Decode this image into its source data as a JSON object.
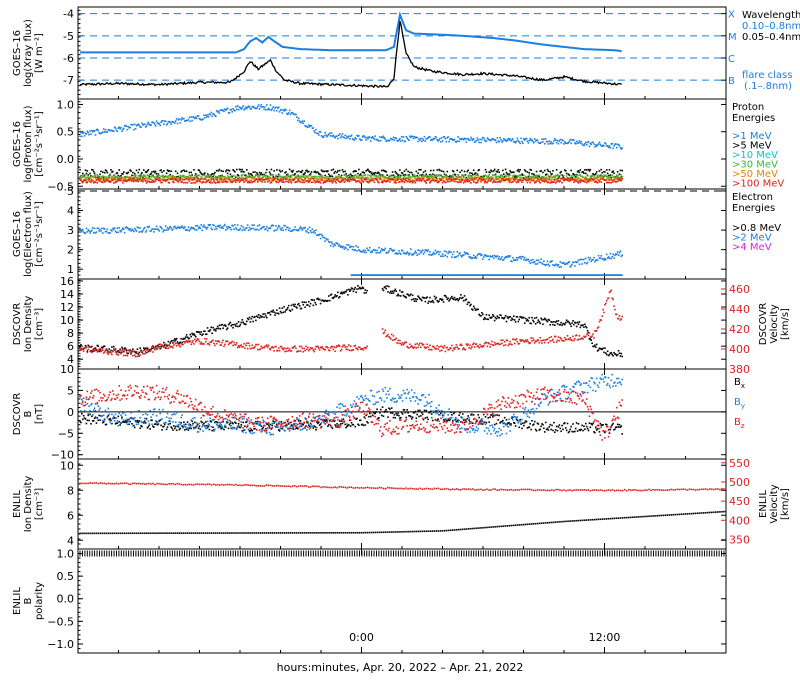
{
  "figure": {
    "xlabel": "hours:minutes, Apr. 20, 2022 – Apr. 21, 2022",
    "x_range_hours": [
      -14.0,
      18.0
    ],
    "x_ticks": [
      {
        "label": "0:00",
        "hour": 0
      },
      {
        "label": "12:00",
        "hour": 12
      }
    ]
  },
  "chart_data": [
    {
      "type": "line",
      "id": "xray",
      "ylabel": [
        "GOES–16",
        "log(Xray flux)",
        "[W m⁻²]"
      ],
      "ylim": [
        -7.85,
        -3.7
      ],
      "yticks": [
        -7,
        -6,
        -5,
        -4
      ],
      "ref_lines": [
        -4,
        -5,
        -6,
        -7
      ],
      "ref_labels": [
        "X",
        "M",
        "C",
        "B"
      ],
      "legend": {
        "title": "Wavelength",
        "entries": [
          {
            "label": "0.10–0.8nm",
            "color": "#1a7fe0"
          },
          {
            "label": "0.05–0.4nm",
            "color": "#000000"
          }
        ]
      },
      "note": [
        "flare class",
        "(.1–.8nm)"
      ],
      "series": [
        {
          "name": "0.10–0.8nm",
          "color": "#1a7fe0",
          "style": "step",
          "points": [
            [
              -13.9,
              -5.75
            ],
            [
              -6.2,
              -5.75
            ],
            [
              -5.8,
              -5.6
            ],
            [
              -5.5,
              -5.25
            ],
            [
              -5.2,
              -5.1
            ],
            [
              -4.9,
              -5.3
            ],
            [
              -4.6,
              -5.05
            ],
            [
              -4.3,
              -5.25
            ],
            [
              -3.9,
              -5.5
            ],
            [
              -3.0,
              -5.6
            ],
            [
              -1.5,
              -5.65
            ],
            [
              1.2,
              -5.65
            ],
            [
              1.6,
              -5.5
            ],
            [
              1.9,
              -4.05
            ],
            [
              2.2,
              -4.75
            ],
            [
              2.6,
              -4.9
            ],
            [
              4.0,
              -4.95
            ],
            [
              5.0,
              -5.0
            ],
            [
              6.5,
              -5.1
            ],
            [
              7.5,
              -5.2
            ],
            [
              9.0,
              -5.4
            ],
            [
              10.0,
              -5.5
            ],
            [
              11.0,
              -5.6
            ],
            [
              12.5,
              -5.65
            ],
            [
              12.9,
              -5.7
            ]
          ]
        },
        {
          "name": "0.05–0.4nm",
          "color": "#000000",
          "style": "line",
          "points": [
            [
              -13.9,
              -7.2
            ],
            [
              -12.0,
              -7.15
            ],
            [
              -10.0,
              -7.2
            ],
            [
              -8.0,
              -7.1
            ],
            [
              -6.5,
              -7.1
            ],
            [
              -6.2,
              -6.9
            ],
            [
              -5.8,
              -6.6
            ],
            [
              -5.5,
              -6.15
            ],
            [
              -5.1,
              -6.5
            ],
            [
              -4.8,
              -6.3
            ],
            [
              -4.5,
              -6.1
            ],
            [
              -4.2,
              -6.6
            ],
            [
              -3.8,
              -7.0
            ],
            [
              -3.0,
              -7.15
            ],
            [
              -1.5,
              -7.2
            ],
            [
              0.0,
              -7.25
            ],
            [
              1.3,
              -7.3
            ],
            [
              1.6,
              -6.9
            ],
            [
              1.9,
              -4.3
            ],
            [
              2.2,
              -5.8
            ],
            [
              2.6,
              -6.4
            ],
            [
              3.5,
              -6.6
            ],
            [
              5.0,
              -6.75
            ],
            [
              6.0,
              -6.7
            ],
            [
              7.5,
              -6.8
            ],
            [
              9.0,
              -7.0
            ],
            [
              10.0,
              -6.85
            ],
            [
              11.0,
              -7.05
            ],
            [
              12.9,
              -7.2
            ]
          ]
        }
      ]
    },
    {
      "type": "scatter",
      "id": "protons",
      "ylabel": [
        "GOES–16",
        "log(Proton flux)",
        "[cm⁻²s⁻¹sr⁻¹]"
      ],
      "ylim": [
        -0.55,
        1.1
      ],
      "yticks": [
        -0.5,
        0.0,
        0.5,
        1.0
      ],
      "ytick_labels": [
        "−0.5",
        "0.0",
        "0.5",
        "1.0"
      ],
      "legend": {
        "title": [
          "Proton",
          "Energies"
        ],
        "entries": [
          {
            "label": ">1 MeV",
            "color": "#1a7fe0"
          },
          {
            "label": ">5 MeV",
            "color": "#000000"
          },
          {
            "label": ">10 MeV",
            "color": "#00c8d8"
          },
          {
            "label": ">30 MeV",
            "color": "#33bb33"
          },
          {
            "label": ">50 MeV",
            "color": "#dd8800"
          },
          {
            "label": ">100 MeV",
            "color": "#dd2222"
          }
        ]
      },
      "series": [
        {
          "name": ">1 MeV",
          "color": "#1a7fe0",
          "points": [
            [
              -13.9,
              0.45
            ],
            [
              -11.0,
              0.6
            ],
            [
              -8.0,
              0.75
            ],
            [
              -6.0,
              0.95
            ],
            [
              -4.5,
              0.95
            ],
            [
              -3.5,
              0.85
            ],
            [
              -2.0,
              0.45
            ],
            [
              0.0,
              0.38
            ],
            [
              6.0,
              0.35
            ],
            [
              10.0,
              0.32
            ],
            [
              12.9,
              0.22
            ]
          ],
          "jitter": 0.05
        },
        {
          "name": ">5 MeV",
          "color": "#000000",
          "points": [
            [
              -13.9,
              -0.27
            ],
            [
              12.9,
              -0.27
            ]
          ],
          "jitter": 0.08
        },
        {
          "name": ">30 MeV",
          "color": "#33bb33",
          "points": [
            [
              -13.9,
              -0.33
            ],
            [
              12.9,
              -0.33
            ]
          ],
          "jitter": 0.04
        },
        {
          "name": ">50 MeV",
          "color": "#dd8800",
          "points": [
            [
              -13.9,
              -0.37
            ],
            [
              12.9,
              -0.37
            ]
          ],
          "jitter": 0.04
        },
        {
          "name": ">100 MeV",
          "color": "#dd2222",
          "points": [
            [
              -13.9,
              -0.4
            ],
            [
              12.9,
              -0.4
            ]
          ],
          "jitter": 0.04
        }
      ]
    },
    {
      "type": "scatter",
      "id": "electrons",
      "ylabel": [
        "GOES–16",
        "log(Electron flux)",
        "[cm⁻²s⁻¹sr⁻¹]"
      ],
      "ylim": [
        0.5,
        5.1
      ],
      "yticks": [
        1,
        2,
        3,
        4,
        5
      ],
      "ref_lines": [
        5
      ],
      "legend": {
        "title": [
          "Electron",
          "Energies"
        ],
        "entries": [
          {
            "label": ">0.8 MeV",
            "color": "#000000"
          },
          {
            "label": ">2 MeV",
            "color": "#1a7fe0"
          },
          {
            "label": ">4 MeV",
            "color": "#dd22dd"
          }
        ]
      },
      "series": [
        {
          "name": ">2 MeV",
          "color": "#1a7fe0",
          "points": [
            [
              -13.9,
              2.95
            ],
            [
              -10.0,
              3.05
            ],
            [
              -7.0,
              3.15
            ],
            [
              -4.0,
              3.1
            ],
            [
              -2.4,
              3.0
            ],
            [
              -1.5,
              2.3
            ],
            [
              0.0,
              2.0
            ],
            [
              4.0,
              1.8
            ],
            [
              8.0,
              1.5
            ],
            [
              10.0,
              1.2
            ],
            [
              12.9,
              1.8
            ]
          ],
          "jitter": 0.15
        },
        {
          "name": ">2 MeV floor",
          "color": "#1a7fe0",
          "points": [
            [
              -0.5,
              0.7
            ],
            [
              12.9,
              0.7
            ]
          ],
          "jitter": 0.0
        }
      ]
    },
    {
      "type": "scatter",
      "id": "dscovr-plasma",
      "ylabel": [
        "DSCOVR",
        "Ion Density",
        "[cm⁻³]"
      ],
      "ylim": [
        2.5,
        16.3
      ],
      "yticks": [
        4,
        6,
        8,
        10,
        12,
        14,
        16
      ],
      "y2label": [
        "DSCOVR",
        "Velocity",
        "[km/s]"
      ],
      "y2lim": [
        380,
        470
      ],
      "y2ticks": [
        380,
        400,
        420,
        440,
        460
      ],
      "series": [
        {
          "name": "Density",
          "axis": "left",
          "color": "#000000",
          "points": [
            [
              -13.9,
              5.8
            ],
            [
              -11.0,
              5.2
            ],
            [
              -10.0,
              5.8
            ],
            [
              -8.0,
              8.0
            ],
            [
              -6.0,
              9.5
            ],
            [
              -4.0,
              11.5
            ],
            [
              -2.0,
              13.0
            ],
            [
              0.0,
              15.0
            ],
            [
              0.3,
              14.0
            ],
            [
              0.8,
              null
            ],
            [
              1.0,
              15.0
            ],
            [
              3.0,
              13.0
            ],
            [
              5.0,
              13.5
            ],
            [
              6.0,
              10.5
            ],
            [
              9.0,
              9.8
            ],
            [
              11.0,
              9.3
            ],
            [
              11.5,
              6.0
            ],
            [
              12.3,
              4.8
            ],
            [
              12.9,
              4.8
            ]
          ],
          "jitter": 0.5
        },
        {
          "name": "Velocity",
          "axis": "right",
          "color": "#dd2222",
          "points": [
            [
              -13.9,
              400
            ],
            [
              -11.0,
              395
            ],
            [
              -10.0,
              402
            ],
            [
              -8.0,
              408
            ],
            [
              -6.0,
              404
            ],
            [
              -4.0,
              400
            ],
            [
              -2.0,
              400
            ],
            [
              0.0,
              402
            ],
            [
              0.3,
              402
            ],
            [
              0.8,
              null
            ],
            [
              1.0,
              418
            ],
            [
              2.0,
              405
            ],
            [
              4.0,
              400
            ],
            [
              6.0,
              404
            ],
            [
              8.0,
              408
            ],
            [
              10.0,
              410
            ],
            [
              11.5,
              414
            ],
            [
              12.0,
              440
            ],
            [
              12.3,
              460
            ],
            [
              12.6,
              434
            ],
            [
              12.9,
              430
            ]
          ],
          "jitter": 3
        }
      ]
    },
    {
      "type": "scatter",
      "id": "dscovr-mag",
      "ylabel": [
        "DSCOVR",
        "B",
        "[nT]"
      ],
      "ylim": [
        -11.0,
        10.0
      ],
      "yticks": [
        -10,
        -5,
        0,
        5,
        10
      ],
      "ytick_labels": [
        "−10",
        "−5",
        "0",
        "5",
        "10"
      ],
      "zero_line": true,
      "legend_inline": [
        {
          "label": "B",
          "sub": "x",
          "color": "#000000"
        },
        {
          "label": "B",
          "sub": "y",
          "color": "#1a7fe0"
        },
        {
          "label": "B",
          "sub": "z",
          "color": "#dd2222"
        }
      ],
      "series": [
        {
          "name": "Bx",
          "color": "#000000",
          "points": [
            [
              -13.9,
              -1.5
            ],
            [
              -10.0,
              -3.0
            ],
            [
              -6.0,
              -3.5
            ],
            [
              -2.0,
              -3.0
            ],
            [
              0.0,
              -2.5
            ],
            [
              1.0,
              0.0
            ],
            [
              4.0,
              -1.0
            ],
            [
              7.0,
              -2.0
            ],
            [
              9.0,
              -3.5
            ],
            [
              12.9,
              -4.0
            ]
          ],
          "jitter": 1.2
        },
        {
          "name": "By",
          "color": "#1a7fe0",
          "points": [
            [
              -13.9,
              2.0
            ],
            [
              -12.0,
              -2.0
            ],
            [
              -10.0,
              -1.0
            ],
            [
              -8.0,
              -3.0
            ],
            [
              -6.0,
              -3.0
            ],
            [
              -4.0,
              -4.0
            ],
            [
              -2.0,
              -2.0
            ],
            [
              0.0,
              2.5
            ],
            [
              1.0,
              4.0
            ],
            [
              3.0,
              3.5
            ],
            [
              5.0,
              -3.0
            ],
            [
              7.0,
              -4.0
            ],
            [
              9.0,
              3.0
            ],
            [
              11.0,
              6.0
            ],
            [
              12.9,
              8.0
            ]
          ],
          "jitter": 1.8
        },
        {
          "name": "Bz",
          "color": "#dd2222",
          "points": [
            [
              -13.9,
              3.0
            ],
            [
              -11.0,
              5.0
            ],
            [
              -9.0,
              3.5
            ],
            [
              -7.0,
              -1.0
            ],
            [
              -5.0,
              -3.0
            ],
            [
              -3.0,
              -2.0
            ],
            [
              -1.0,
              -2.0
            ],
            [
              0.0,
              1.0
            ],
            [
              1.0,
              -4.0
            ],
            [
              3.0,
              -3.0
            ],
            [
              5.0,
              -3.5
            ],
            [
              7.0,
              2.0
            ],
            [
              9.0,
              4.0
            ],
            [
              11.0,
              3.0
            ],
            [
              12.0,
              -6.0
            ],
            [
              12.9,
              2.0
            ]
          ],
          "jitter": 1.8
        }
      ]
    },
    {
      "type": "scatter",
      "id": "enlil-plasma",
      "ylabel": [
        "ENLIL",
        "Ion Density",
        "[cm⁻³]"
      ],
      "ylim": [
        3.3,
        10.5
      ],
      "yticks": [
        4,
        6,
        8,
        10
      ],
      "y2label": [
        "ENLIL",
        "Velocity",
        "[km/s]"
      ],
      "y2lim": [
        325,
        560
      ],
      "y2ticks": [
        350,
        400,
        450,
        500,
        550
      ],
      "series": [
        {
          "name": "Density",
          "axis": "left",
          "color": "#000000",
          "points": [
            [
              -13.9,
              4.55
            ],
            [
              0.0,
              4.6
            ],
            [
              4.0,
              4.75
            ],
            [
              10.0,
              5.5
            ],
            [
              18.0,
              6.3
            ]
          ],
          "jitter": 0.0
        },
        {
          "name": "Velocity",
          "axis": "right",
          "color": "#dd2222",
          "points": [
            [
              -13.9,
              497
            ],
            [
              -6.0,
              492
            ],
            [
              0.0,
              485
            ],
            [
              6.0,
              480
            ],
            [
              12.0,
              478
            ],
            [
              18.0,
              481
            ]
          ],
          "jitter": 1.5
        }
      ]
    },
    {
      "type": "scatter",
      "id": "enlil-polarity",
      "ylabel": [
        "ENLIL",
        "B",
        "polarity"
      ],
      "ylim": [
        -1.2,
        1.1
      ],
      "yticks": [
        -1.0,
        -0.5,
        0.0,
        0.5,
        1.0
      ],
      "ytick_labels": [
        "−1.0",
        "−0.5",
        "0.0",
        "0.5",
        "1.0"
      ],
      "series": [
        {
          "name": "Polarity",
          "color": "#000000",
          "points": [
            [
              -13.9,
              1.0
            ],
            [
              18.0,
              1.0
            ]
          ],
          "jitter": 0.0
        }
      ]
    }
  ]
}
